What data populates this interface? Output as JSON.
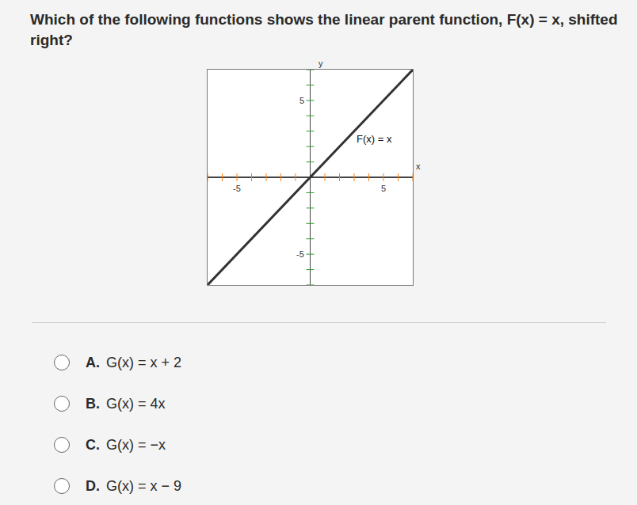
{
  "question": "Which of the following functions shows the linear parent function, F(x) = x, shifted right?",
  "chart_data": {
    "type": "line",
    "x": [
      -7,
      7
    ],
    "values": [
      -7,
      7
    ],
    "color": "#333333",
    "xlim": [
      -7,
      7
    ],
    "ylim": [
      -7,
      7
    ],
    "xticks": [
      -5,
      5
    ],
    "yticks": [
      -5,
      5
    ],
    "x_label": "x",
    "y_label": "y",
    "grid": false,
    "annotations": [
      {
        "text": "F(x) = x",
        "x": 4.4,
        "y": 2.5
      }
    ]
  },
  "choices": [
    {
      "letter": "A.",
      "text": "G(x) = x + 2"
    },
    {
      "letter": "B.",
      "text": "G(x) = 4x"
    },
    {
      "letter": "C.",
      "text": "G(x) = −x"
    },
    {
      "letter": "D.",
      "text": "G(x) = x − 9"
    }
  ]
}
